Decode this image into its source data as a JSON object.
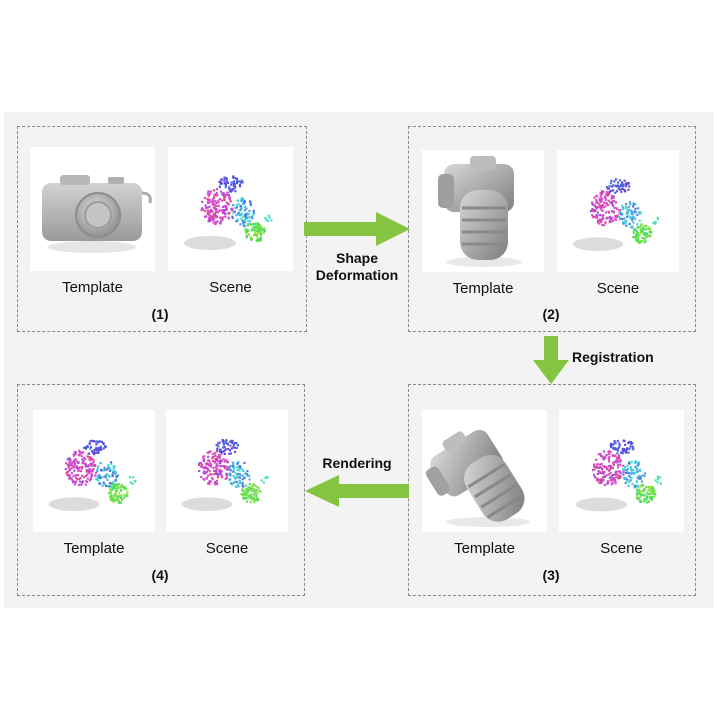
{
  "panels": [
    {
      "step": "(1)",
      "template_label": "Template",
      "scene_label": "Scene",
      "template_object": "camera-compact"
    },
    {
      "step": "(2)",
      "template_label": "Template",
      "scene_label": "Scene",
      "template_object": "camera-dslr-deformed"
    },
    {
      "step": "(3)",
      "template_label": "Template",
      "scene_label": "Scene",
      "template_object": "camera-dslr-registered"
    },
    {
      "step": "(4)",
      "template_label": "Template",
      "scene_label": "Scene",
      "template_object": "pointcloud-rendered"
    }
  ],
  "arrows": {
    "deformation": {
      "line1": "Shape",
      "line2": "Deformation"
    },
    "registration": "Registration",
    "rendering": "Rendering"
  },
  "colors": {
    "arrow": "#84c441",
    "dash": "#8a8a8a",
    "background": "#f3f3f3"
  }
}
